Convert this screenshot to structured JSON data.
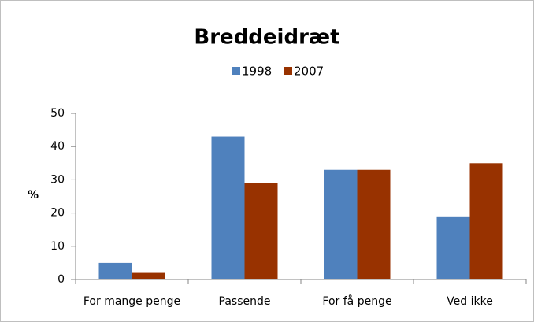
{
  "chart_data": {
    "type": "bar",
    "title": "Breddeidræt",
    "ylabel": "%",
    "categories": [
      "For mange penge",
      "Passende",
      "For få penge",
      "Ved ikke"
    ],
    "series": [
      {
        "name": "1998",
        "color": "#4f81bd",
        "values": [
          5,
          43,
          33,
          19
        ]
      },
      {
        "name": "2007",
        "color": "#983200",
        "values": [
          2,
          29,
          33,
          35
        ]
      }
    ],
    "ylim": [
      0,
      50
    ],
    "yticks": [
      0,
      10,
      20,
      30,
      40,
      50
    ],
    "legend": "top"
  }
}
